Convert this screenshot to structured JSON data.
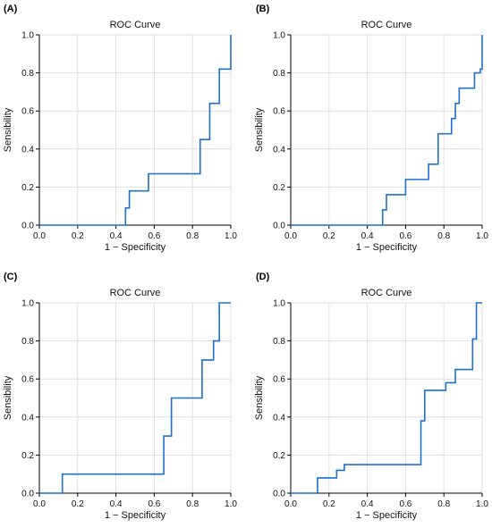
{
  "style": {
    "curve_color": "#1f6fd1",
    "grid_color": "#dedede"
  },
  "chart_data": [
    {
      "panel_label": "(A)",
      "type": "line",
      "title": "ROC Curve",
      "xlabel": "1 − Specificity",
      "ylabel": "Sensibility",
      "xlim": [
        0,
        1
      ],
      "ylim": [
        0,
        1
      ],
      "xticks": [
        "0.0",
        "0.2",
        "0.4",
        "0.6",
        "0.8",
        "1.0"
      ],
      "yticks": [
        "0.0",
        "0.2",
        "0.4",
        "0.6",
        "0.8",
        "1.0"
      ],
      "grid": true,
      "series": [
        {
          "x": [
            0,
            0.45,
            0.45,
            0.47,
            0.47,
            0.57,
            0.57,
            0.84,
            0.84,
            0.89,
            0.89,
            0.94,
            0.94,
            0.98,
            0.98,
            1.0,
            1.0
          ],
          "y": [
            0,
            0,
            0.09,
            0.09,
            0.18,
            0.18,
            0.27,
            0.27,
            0.45,
            0.45,
            0.64,
            0.64,
            0.82,
            0.82,
            0.82,
            0.82,
            1.0
          ]
        }
      ]
    },
    {
      "panel_label": "(B)",
      "type": "line",
      "title": "ROC Curve",
      "xlabel": "1 − Specificity",
      "ylabel": "Sensibility",
      "xlim": [
        0,
        1
      ],
      "ylim": [
        0,
        1
      ],
      "xticks": [
        "0.0",
        "0.2",
        "0.4",
        "0.6",
        "0.8",
        "1.0"
      ],
      "yticks": [
        "0.0",
        "0.2",
        "0.4",
        "0.6",
        "0.8",
        "1.0"
      ],
      "grid": true,
      "series": [
        {
          "x": [
            0,
            0.48,
            0.48,
            0.5,
            0.5,
            0.6,
            0.6,
            0.72,
            0.72,
            0.77,
            0.77,
            0.84,
            0.84,
            0.86,
            0.86,
            0.88,
            0.88,
            0.96,
            0.96,
            0.99,
            0.99,
            1.0,
            1.0
          ],
          "y": [
            0,
            0,
            0.08,
            0.08,
            0.16,
            0.16,
            0.24,
            0.24,
            0.32,
            0.32,
            0.48,
            0.48,
            0.56,
            0.56,
            0.64,
            0.64,
            0.72,
            0.72,
            0.8,
            0.8,
            0.82,
            0.82,
            1.0
          ]
        }
      ]
    },
    {
      "panel_label": "(C)",
      "type": "line",
      "title": "ROC Curve",
      "xlabel": "1 − Specificity",
      "ylabel": "Sensibility",
      "xlim": [
        0,
        1
      ],
      "ylim": [
        0,
        1
      ],
      "xticks": [
        "0.0",
        "0.2",
        "0.4",
        "0.6",
        "0.8",
        "1.0"
      ],
      "yticks": [
        "0.0",
        "0.2",
        "0.4",
        "0.6",
        "0.8",
        "1.0"
      ],
      "grid": true,
      "series": [
        {
          "x": [
            0,
            0.12,
            0.12,
            0.65,
            0.65,
            0.69,
            0.69,
            0.85,
            0.85,
            0.91,
            0.91,
            0.94,
            0.94,
            1.0
          ],
          "y": [
            0,
            0,
            0.1,
            0.1,
            0.3,
            0.3,
            0.5,
            0.5,
            0.7,
            0.7,
            0.8,
            0.8,
            1.0,
            1.0
          ]
        }
      ]
    },
    {
      "panel_label": "(D)",
      "type": "line",
      "title": "ROC Curve",
      "xlabel": "1 − Specificity",
      "ylabel": "Sensibility",
      "xlim": [
        0,
        1
      ],
      "ylim": [
        0,
        1
      ],
      "xticks": [
        "0.0",
        "0.2",
        "0.4",
        "0.6",
        "0.8",
        "1.0"
      ],
      "yticks": [
        "0.0",
        "0.2",
        "0.4",
        "0.6",
        "0.8",
        "1.0"
      ],
      "grid": true,
      "series": [
        {
          "x": [
            0,
            0.14,
            0.14,
            0.24,
            0.24,
            0.28,
            0.28,
            0.68,
            0.68,
            0.7,
            0.7,
            0.81,
            0.81,
            0.86,
            0.86,
            0.95,
            0.95,
            0.97,
            0.97,
            0.98,
            0.98,
            1.0
          ],
          "y": [
            0,
            0,
            0.08,
            0.08,
            0.12,
            0.12,
            0.15,
            0.15,
            0.38,
            0.38,
            0.54,
            0.54,
            0.58,
            0.58,
            0.65,
            0.65,
            0.81,
            0.81,
            1.0,
            1.0,
            1.0,
            1.0
          ]
        }
      ]
    }
  ]
}
